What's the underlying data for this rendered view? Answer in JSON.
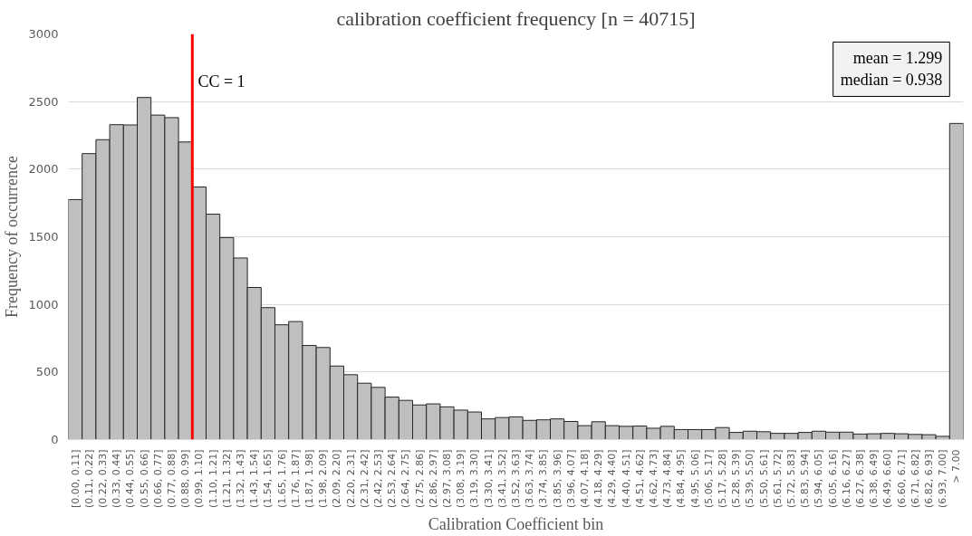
{
  "chart_data": {
    "type": "bar",
    "title": "calibration coefficient frequency [n = 40715]",
    "xlabel": "Calibration Coefficient bin",
    "ylabel": "Frequency of occurrence",
    "categories": [
      "[0.00, 0.11]",
      "(0.11, 0.22]",
      "(0.22, 0.33]",
      "(0.33, 0.44]",
      "(0.44, 0.55]",
      "(0.55, 0.66]",
      "(0.66, 0.77]",
      "(0.77, 0.88]",
      "(0.88, 0.99]",
      "(0.99, 1.10]",
      "(1.10, 1.21]",
      "(1.21, 1.32]",
      "(1.32, 1.43]",
      "(1.43, 1.54]",
      "(1.54, 1.65]",
      "(1.65, 1.76]",
      "(1.76, 1.87]",
      "(1.87, 1.98]",
      "(1.98, 2.09]",
      "(2.09, 2.20]",
      "(2.20, 2.31]",
      "(2.31, 2.42]",
      "(2.42, 2.53]",
      "(2.53, 2.64]",
      "(2.64, 2.75]",
      "(2.75, 2.86]",
      "(2.86, 2.97]",
      "(2.97, 3.08]",
      "(3.08, 3.19]",
      "(3.19, 3.30]",
      "(3.30, 3.41]",
      "(3.41, 3.52]",
      "(3.52, 3.63]",
      "(3.63, 3.74]",
      "(3.74, 3.85]",
      "(3.85, 3.96]",
      "(3.96, 4.07]",
      "(4.07, 4.18]",
      "(4.18, 4.29]",
      "(4.29, 4.40]",
      "(4.40, 4.51]",
      "(4.51, 4.62]",
      "(4.62, 4.73]",
      "(4.73, 4.84]",
      "(4.84, 4.95]",
      "(4.95, 5.06]",
      "(5.06, 5.17]",
      "(5.17, 5.28]",
      "(5.28, 5.39]",
      "(5.39, 5.50]",
      "(5.50, 5.61]",
      "(5.61, 5.72]",
      "(5.72, 5.83]",
      "(5.83, 5.94]",
      "(5.94, 6.05]",
      "(6.05, 6.16]",
      "(6.16, 6.27]",
      "(6.27, 6.38]",
      "(6.38, 6.49]",
      "(6.49, 6.60]",
      "(6.60, 6.71]",
      "(6.71, 6.82]",
      "(6.82, 6.93]",
      "(6.93, 7.00]",
      "> 7.00"
    ],
    "values": [
      1775,
      2115,
      2218,
      2329,
      2327,
      2530,
      2400,
      2381,
      2201,
      1868,
      1667,
      1494,
      1343,
      1125,
      976,
      849,
      873,
      696,
      681,
      544,
      480,
      417,
      386,
      314,
      290,
      256,
      264,
      242,
      218,
      204,
      153,
      163,
      168,
      142,
      146,
      153,
      134,
      103,
      132,
      103,
      98,
      100,
      84,
      98,
      74,
      74,
      74,
      89,
      53,
      62,
      58,
      46,
      46,
      53,
      62,
      55,
      55,
      41,
      43,
      46,
      43,
      38,
      36,
      24,
      2338
    ],
    "color": "#bfbfbf",
    "ylim": [
      0,
      3000
    ],
    "yticks": [
      0,
      500,
      1000,
      1500,
      2000,
      2500,
      3000
    ],
    "grid": "y",
    "ref_lines": [
      {
        "axis": "x",
        "value": "(0.99, 1.10]",
        "label": "CC = 1",
        "color": "#ff0000"
      }
    ],
    "annotations": [
      "mean = 1.299",
      "median = 0.938"
    ]
  }
}
